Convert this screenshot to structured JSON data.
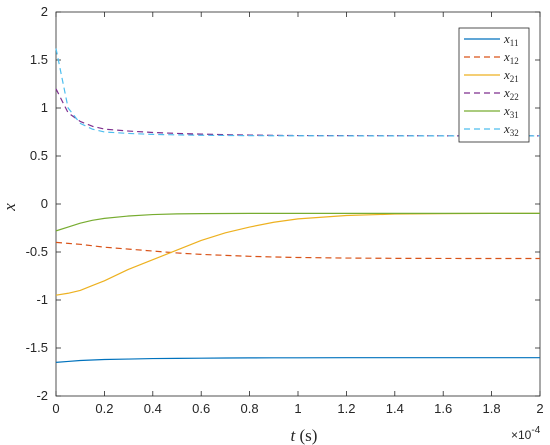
{
  "chart_data": {
    "type": "line",
    "title": "",
    "xlabel_var": "t",
    "xlabel_unit": "(s)",
    "ylabel": "x",
    "x_multiplier": "×10",
    "x_multiplier_exp": "-4",
    "xlim": [
      0,
      2
    ],
    "ylim": [
      -2,
      2
    ],
    "x_ticks": [
      "0",
      "0.2",
      "0.4",
      "0.6",
      "0.8",
      "1",
      "1.2",
      "1.4",
      "1.6",
      "1.8",
      "2"
    ],
    "y_ticks": [
      "-2",
      "-1.5",
      "-1",
      "-0.5",
      "0",
      "0.5",
      "1",
      "1.5",
      "2"
    ],
    "grid": false,
    "legend_position": "top-right",
    "x": [
      0,
      0.05,
      0.1,
      0.15,
      0.2,
      0.3,
      0.4,
      0.5,
      0.6,
      0.7,
      0.8,
      0.9,
      1.0,
      1.2,
      1.4,
      1.6,
      1.8,
      2.0
    ],
    "series": [
      {
        "name": "x11",
        "base": "x",
        "sub": "11",
        "color": "#0072BD",
        "dash": "solid",
        "values": [
          -1.65,
          -1.64,
          -1.63,
          -1.625,
          -1.62,
          -1.615,
          -1.61,
          -1.608,
          -1.606,
          -1.604,
          -1.603,
          -1.602,
          -1.602,
          -1.601,
          -1.601,
          -1.601,
          -1.601,
          -1.601
        ]
      },
      {
        "name": "x12",
        "base": "x",
        "sub": "12",
        "color": "#D95319",
        "dash": "dashed",
        "values": [
          -0.4,
          -0.41,
          -0.42,
          -0.435,
          -0.45,
          -0.47,
          -0.49,
          -0.51,
          -0.525,
          -0.535,
          -0.545,
          -0.552,
          -0.557,
          -0.563,
          -0.566,
          -0.567,
          -0.568,
          -0.568
        ]
      },
      {
        "name": "x21",
        "base": "x",
        "sub": "21",
        "color": "#EDB120",
        "dash": "solid",
        "values": [
          -0.95,
          -0.93,
          -0.9,
          -0.85,
          -0.8,
          -0.68,
          -0.58,
          -0.48,
          -0.38,
          -0.3,
          -0.24,
          -0.19,
          -0.155,
          -0.12,
          -0.105,
          -0.1,
          -0.098,
          -0.098
        ]
      },
      {
        "name": "x22",
        "base": "x",
        "sub": "22",
        "color": "#7E2F8E",
        "dash": "dashed",
        "values": [
          1.2,
          0.95,
          0.86,
          0.81,
          0.78,
          0.76,
          0.745,
          0.735,
          0.728,
          0.722,
          0.718,
          0.715,
          0.713,
          0.712,
          0.711,
          0.71,
          0.71,
          0.71
        ]
      },
      {
        "name": "x31",
        "base": "x",
        "sub": "31",
        "color": "#77AC30",
        "dash": "solid",
        "values": [
          -0.28,
          -0.24,
          -0.2,
          -0.17,
          -0.15,
          -0.125,
          -0.11,
          -0.103,
          -0.1,
          -0.099,
          -0.098,
          -0.098,
          -0.098,
          -0.098,
          -0.098,
          -0.098,
          -0.098,
          -0.098
        ]
      },
      {
        "name": "x32",
        "base": "x",
        "sub": "32",
        "color": "#4DBEEE",
        "dash": "dashed",
        "values": [
          1.62,
          1.0,
          0.84,
          0.78,
          0.75,
          0.735,
          0.725,
          0.72,
          0.716,
          0.714,
          0.712,
          0.711,
          0.711,
          0.71,
          0.71,
          0.71,
          0.71,
          0.71
        ]
      }
    ]
  }
}
